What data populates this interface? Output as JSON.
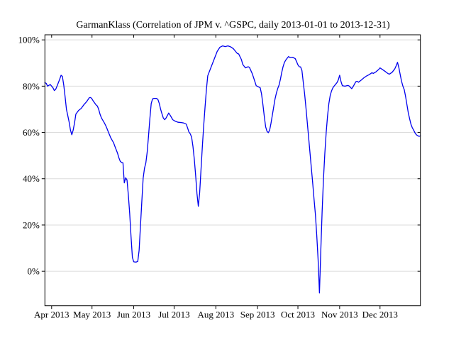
{
  "chart_data": {
    "type": "line",
    "title": "GarmanKlass (Correlation of JPM v. ^GSPC, daily 2013-01-01 to 2013-12-31)",
    "xlabel": "",
    "ylabel": "",
    "legend": "none",
    "grid": "horizontal-only",
    "line_color": "#0000EE",
    "grid_color": "#DBDBDB",
    "frame_color": "#000000",
    "text_color": "#000000",
    "x_ticks": [
      {
        "date": "2013-04-01",
        "label": "Apr 2013"
      },
      {
        "date": "2013-05-01",
        "label": "May 2013"
      },
      {
        "date": "2013-06-01",
        "label": "Jun 2013"
      },
      {
        "date": "2013-07-01",
        "label": "Jul 2013"
      },
      {
        "date": "2013-08-01",
        "label": "Aug 2013"
      },
      {
        "date": "2013-09-01",
        "label": "Sep 2013"
      },
      {
        "date": "2013-10-01",
        "label": "Oct 2013"
      },
      {
        "date": "2013-11-01",
        "label": "Nov 2013"
      },
      {
        "date": "2013-12-01",
        "label": "Dec 2013"
      }
    ],
    "y_ticks": [
      {
        "value": 0,
        "label": "0%"
      },
      {
        "value": 20,
        "label": "20%"
      },
      {
        "value": 40,
        "label": "40%"
      },
      {
        "value": 60,
        "label": "60%"
      },
      {
        "value": 80,
        "label": "80%"
      },
      {
        "value": 100,
        "label": "100%"
      }
    ],
    "xlim_dates": [
      "2013-03-27",
      "2013-12-31"
    ],
    "x_domain_days": [
      86,
      365
    ],
    "ylim": [
      -14.9,
      102.2
    ],
    "series": [
      {
        "name": "correlation",
        "points": [
          [
            "2013-03-27",
            81.5
          ],
          [
            "2013-03-28",
            81.2
          ],
          [
            "2013-03-29",
            80.0
          ],
          [
            "2013-03-31",
            80.7
          ],
          [
            "2013-04-02",
            79.3
          ],
          [
            "2013-04-03",
            78.1
          ],
          [
            "2013-04-04",
            78.6
          ],
          [
            "2013-04-05",
            80.0
          ],
          [
            "2013-04-07",
            83.0
          ],
          [
            "2013-04-08",
            84.7
          ],
          [
            "2013-04-09",
            84.2
          ],
          [
            "2013-04-10",
            80.5
          ],
          [
            "2013-04-11",
            75.5
          ],
          [
            "2013-04-12",
            70.0
          ],
          [
            "2013-04-13",
            67.3
          ],
          [
            "2013-04-14",
            64.5
          ],
          [
            "2013-04-15",
            61.0
          ],
          [
            "2013-04-16",
            59.0
          ],
          [
            "2013-04-17",
            61.0
          ],
          [
            "2013-04-18",
            64.0
          ],
          [
            "2013-04-19",
            67.9
          ],
          [
            "2013-04-21",
            69.5
          ],
          [
            "2013-04-23",
            70.4
          ],
          [
            "2013-04-25",
            72.0
          ],
          [
            "2013-04-27",
            73.3
          ],
          [
            "2013-04-29",
            75.0
          ],
          [
            "2013-04-30",
            75.1
          ],
          [
            "2013-05-01",
            74.5
          ],
          [
            "2013-05-02",
            73.5
          ],
          [
            "2013-05-04",
            71.9
          ],
          [
            "2013-05-05",
            71.4
          ],
          [
            "2013-05-06",
            69.9
          ],
          [
            "2013-05-07",
            67.8
          ],
          [
            "2013-05-08",
            66.3
          ],
          [
            "2013-05-09",
            65.3
          ],
          [
            "2013-05-10",
            64.3
          ],
          [
            "2013-05-11",
            63.2
          ],
          [
            "2013-05-12",
            61.9
          ],
          [
            "2013-05-13",
            60.4
          ],
          [
            "2013-05-14",
            59.0
          ],
          [
            "2013-05-15",
            57.6
          ],
          [
            "2013-05-16",
            56.6
          ],
          [
            "2013-05-17",
            55.6
          ],
          [
            "2013-05-18",
            54.0
          ],
          [
            "2013-05-19",
            52.5
          ],
          [
            "2013-05-20",
            51.0
          ],
          [
            "2013-05-21",
            49.0
          ],
          [
            "2013-05-22",
            47.5
          ],
          [
            "2013-05-23",
            47.0
          ],
          [
            "2013-05-24",
            46.9
          ],
          [
            "2013-05-25",
            38.2
          ],
          [
            "2013-05-26",
            40.4
          ],
          [
            "2013-05-27",
            39.5
          ],
          [
            "2013-05-28",
            33.0
          ],
          [
            "2013-05-29",
            25.0
          ],
          [
            "2013-05-30",
            15.0
          ],
          [
            "2013-05-31",
            6.0
          ],
          [
            "2013-06-01",
            4.1
          ],
          [
            "2013-06-02",
            4.0
          ],
          [
            "2013-06-03",
            4.0
          ],
          [
            "2013-06-04",
            4.3
          ],
          [
            "2013-06-05",
            9.0
          ],
          [
            "2013-06-06",
            19.5
          ],
          [
            "2013-06-07",
            30.0
          ],
          [
            "2013-06-08",
            40.2
          ],
          [
            "2013-06-09",
            44.5
          ],
          [
            "2013-06-10",
            46.8
          ],
          [
            "2013-06-11",
            51.5
          ],
          [
            "2013-06-12",
            58.5
          ],
          [
            "2013-06-13",
            66.0
          ],
          [
            "2013-06-14",
            72.5
          ],
          [
            "2013-06-15",
            74.5
          ],
          [
            "2013-06-16",
            74.7
          ],
          [
            "2013-06-18",
            74.7
          ],
          [
            "2013-06-19",
            74.2
          ],
          [
            "2013-06-20",
            72.5
          ],
          [
            "2013-06-21",
            70.0
          ],
          [
            "2013-06-22",
            68.0
          ],
          [
            "2013-06-23",
            66.2
          ],
          [
            "2013-06-24",
            65.5
          ],
          [
            "2013-06-25",
            66.2
          ],
          [
            "2013-06-27",
            68.4
          ],
          [
            "2013-06-28",
            67.5
          ],
          [
            "2013-06-30",
            65.5
          ],
          [
            "2013-07-02",
            64.8
          ],
          [
            "2013-07-04",
            64.4
          ],
          [
            "2013-07-06",
            64.3
          ],
          [
            "2013-07-08",
            64.1
          ],
          [
            "2013-07-10",
            63.6
          ],
          [
            "2013-07-11",
            62.0
          ],
          [
            "2013-07-12",
            60.2
          ],
          [
            "2013-07-13",
            59.4
          ],
          [
            "2013-07-14",
            58.0
          ],
          [
            "2013-07-15",
            54.0
          ],
          [
            "2013-07-16",
            48.5
          ],
          [
            "2013-07-17",
            41.5
          ],
          [
            "2013-07-18",
            33.5
          ],
          [
            "2013-07-19",
            28.1
          ],
          [
            "2013-07-20",
            34.0
          ],
          [
            "2013-07-21",
            44.0
          ],
          [
            "2013-07-22",
            54.0
          ],
          [
            "2013-07-23",
            63.0
          ],
          [
            "2013-07-24",
            71.0
          ],
          [
            "2013-07-25",
            78.5
          ],
          [
            "2013-07-26",
            84.5
          ],
          [
            "2013-07-27",
            86.0
          ],
          [
            "2013-07-29",
            89.0
          ],
          [
            "2013-07-31",
            92.0
          ],
          [
            "2013-08-02",
            95.0
          ],
          [
            "2013-08-04",
            96.8
          ],
          [
            "2013-08-06",
            97.4
          ],
          [
            "2013-08-08",
            97.1
          ],
          [
            "2013-08-10",
            97.4
          ],
          [
            "2013-08-12",
            97.0
          ],
          [
            "2013-08-14",
            96.2
          ],
          [
            "2013-08-16",
            94.8
          ],
          [
            "2013-08-17",
            94.1
          ],
          [
            "2013-08-18",
            93.9
          ],
          [
            "2013-08-20",
            91.5
          ],
          [
            "2013-08-21",
            89.4
          ],
          [
            "2013-08-23",
            87.9
          ],
          [
            "2013-08-25",
            88.4
          ],
          [
            "2013-08-26",
            88.1
          ],
          [
            "2013-08-28",
            85.5
          ],
          [
            "2013-08-29",
            83.8
          ],
          [
            "2013-08-31",
            80.2
          ],
          [
            "2013-09-02",
            79.6
          ],
          [
            "2013-09-03",
            79.3
          ],
          [
            "2013-09-04",
            76.5
          ],
          [
            "2013-09-05",
            72.0
          ],
          [
            "2013-09-06",
            67.0
          ],
          [
            "2013-09-07",
            62.5
          ],
          [
            "2013-09-08",
            60.5
          ],
          [
            "2013-09-09",
            59.9
          ],
          [
            "2013-09-10",
            61.0
          ],
          [
            "2013-09-11",
            64.0
          ],
          [
            "2013-09-12",
            67.5
          ],
          [
            "2013-09-13",
            71.0
          ],
          [
            "2013-09-14",
            74.5
          ],
          [
            "2013-09-15",
            77.0
          ],
          [
            "2013-09-16",
            79.0
          ],
          [
            "2013-09-17",
            80.5
          ],
          [
            "2013-09-18",
            83.0
          ],
          [
            "2013-09-19",
            86.0
          ],
          [
            "2013-09-20",
            88.5
          ],
          [
            "2013-09-21",
            90.3
          ],
          [
            "2013-09-22",
            91.3
          ],
          [
            "2013-09-24",
            92.8
          ],
          [
            "2013-09-25",
            92.4
          ],
          [
            "2013-09-27",
            92.5
          ],
          [
            "2013-09-29",
            91.9
          ],
          [
            "2013-09-30",
            90.6
          ],
          [
            "2013-10-01",
            89.2
          ],
          [
            "2013-10-02",
            88.4
          ],
          [
            "2013-10-03",
            88.3
          ],
          [
            "2013-10-04",
            86.7
          ],
          [
            "2013-10-05",
            81.5
          ],
          [
            "2013-10-06",
            76.5
          ],
          [
            "2013-10-07",
            70.5
          ],
          [
            "2013-10-08",
            64.0
          ],
          [
            "2013-10-09",
            57.5
          ],
          [
            "2013-10-10",
            51.0
          ],
          [
            "2013-10-11",
            44.5
          ],
          [
            "2013-10-12",
            38.0
          ],
          [
            "2013-10-13",
            31.0
          ],
          [
            "2013-10-14",
            24.5
          ],
          [
            "2013-10-15",
            15.5
          ],
          [
            "2013-10-16",
            5.0
          ],
          [
            "2013-10-17",
            -9.4
          ],
          [
            "2013-10-18",
            9.0
          ],
          [
            "2013-10-19",
            26.0
          ],
          [
            "2013-10-20",
            40.0
          ],
          [
            "2013-10-21",
            51.0
          ],
          [
            "2013-10-22",
            60.0
          ],
          [
            "2013-10-23",
            67.0
          ],
          [
            "2013-10-24",
            72.5
          ],
          [
            "2013-10-25",
            76.0
          ],
          [
            "2013-10-26",
            78.0
          ],
          [
            "2013-10-27",
            79.3
          ],
          [
            "2013-10-28",
            80.1
          ],
          [
            "2013-10-30",
            81.5
          ],
          [
            "2013-10-31",
            82.7
          ],
          [
            "2013-11-01",
            84.7
          ],
          [
            "2013-11-02",
            82.0
          ],
          [
            "2013-11-03",
            80.2
          ],
          [
            "2013-11-05",
            80.0
          ],
          [
            "2013-11-07",
            80.3
          ],
          [
            "2013-11-08",
            80.1
          ],
          [
            "2013-11-10",
            78.9
          ],
          [
            "2013-11-11",
            79.8
          ],
          [
            "2013-11-13",
            81.9
          ],
          [
            "2013-11-14",
            82.1
          ],
          [
            "2013-11-15",
            81.7
          ],
          [
            "2013-11-17",
            82.6
          ],
          [
            "2013-11-19",
            83.6
          ],
          [
            "2013-11-21",
            84.4
          ],
          [
            "2013-11-23",
            85.0
          ],
          [
            "2013-11-25",
            85.8
          ],
          [
            "2013-11-26",
            85.5
          ],
          [
            "2013-11-28",
            86.2
          ],
          [
            "2013-11-30",
            87.2
          ],
          [
            "2013-12-01",
            87.9
          ],
          [
            "2013-12-03",
            87.1
          ],
          [
            "2013-12-05",
            86.3
          ],
          [
            "2013-12-07",
            85.4
          ],
          [
            "2013-12-08",
            85.2
          ],
          [
            "2013-12-10",
            86.0
          ],
          [
            "2013-12-12",
            87.5
          ],
          [
            "2013-12-13",
            88.8
          ],
          [
            "2013-12-14",
            90.3
          ],
          [
            "2013-12-15",
            88.0
          ],
          [
            "2013-12-16",
            85.0
          ],
          [
            "2013-12-17",
            82.1
          ],
          [
            "2013-12-18",
            80.0
          ],
          [
            "2013-12-19",
            78.5
          ],
          [
            "2013-12-20",
            75.5
          ],
          [
            "2013-12-21",
            72.0
          ],
          [
            "2013-12-22",
            68.5
          ],
          [
            "2013-12-23",
            65.9
          ],
          [
            "2013-12-24",
            63.5
          ],
          [
            "2013-12-25",
            62.0
          ],
          [
            "2013-12-26",
            61.0
          ],
          [
            "2013-12-27",
            59.8
          ],
          [
            "2013-12-28",
            59.0
          ],
          [
            "2013-12-29",
            58.6
          ],
          [
            "2013-12-30",
            58.3
          ],
          [
            "2013-12-31",
            58.5
          ]
        ]
      }
    ]
  }
}
